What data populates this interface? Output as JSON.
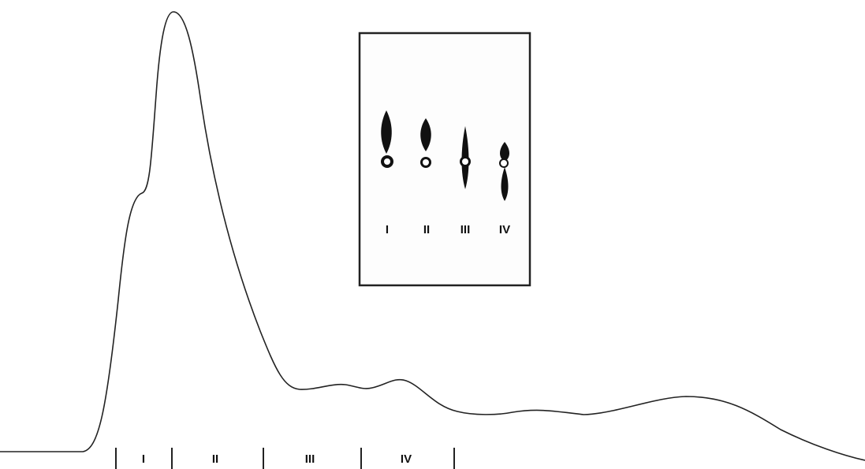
{
  "fractions": [
    "I",
    "II",
    "III",
    "IV"
  ],
  "inset_lanes": [
    "I",
    "II",
    "III",
    "IV"
  ]
}
